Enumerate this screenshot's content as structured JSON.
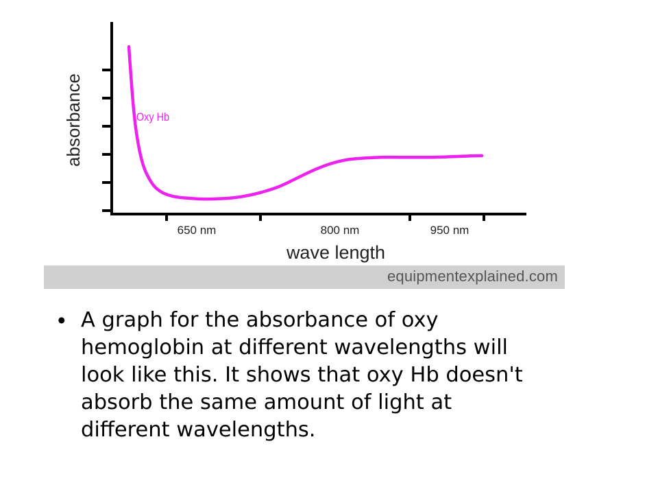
{
  "chart_data": {
    "type": "line",
    "xlabel": "wave length",
    "ylabel": "absorbance",
    "x_ticks": [
      {
        "value": 650,
        "label": "650 nm"
      },
      {
        "value": 800,
        "label": "800 nm"
      },
      {
        "value": 950,
        "label": "950 nm"
      }
    ],
    "xlim": [
      560,
      1040
    ],
    "ylim": [
      0,
      1
    ],
    "y_tick_count": 6,
    "y_tick_labels_shown": false,
    "grid": false,
    "series": [
      {
        "name": "Oxy Hb",
        "color": "#ee22ee",
        "x": [
          580,
          582,
          585,
          588,
          592,
          596,
          600,
          606,
          612,
          620,
          630,
          640,
          650,
          665,
          680,
          700,
          720,
          740,
          760,
          780,
          800,
          820,
          840,
          860,
          880,
          900,
          920,
          940,
          960,
          980,
          1000
        ],
        "y": [
          0.95,
          0.8,
          0.6,
          0.45,
          0.32,
          0.23,
          0.17,
          0.11,
          0.07,
          0.04,
          0.02,
          0.01,
          0.005,
          0.0,
          0.0,
          0.005,
          0.02,
          0.045,
          0.08,
          0.13,
          0.18,
          0.22,
          0.245,
          0.255,
          0.26,
          0.26,
          0.26,
          0.26,
          0.263,
          0.267,
          0.27
        ]
      }
    ]
  },
  "watermark": {
    "part1": "equipment",
    "part2": "explained",
    "part3": ".com"
  },
  "bullet": {
    "dot": "•",
    "text": "A graph for the absorbance of oxy hemoglobin at different wavelengths will look like this. It shows that oxy Hb doesn't absorb the same amount of light at different wavelengths."
  }
}
